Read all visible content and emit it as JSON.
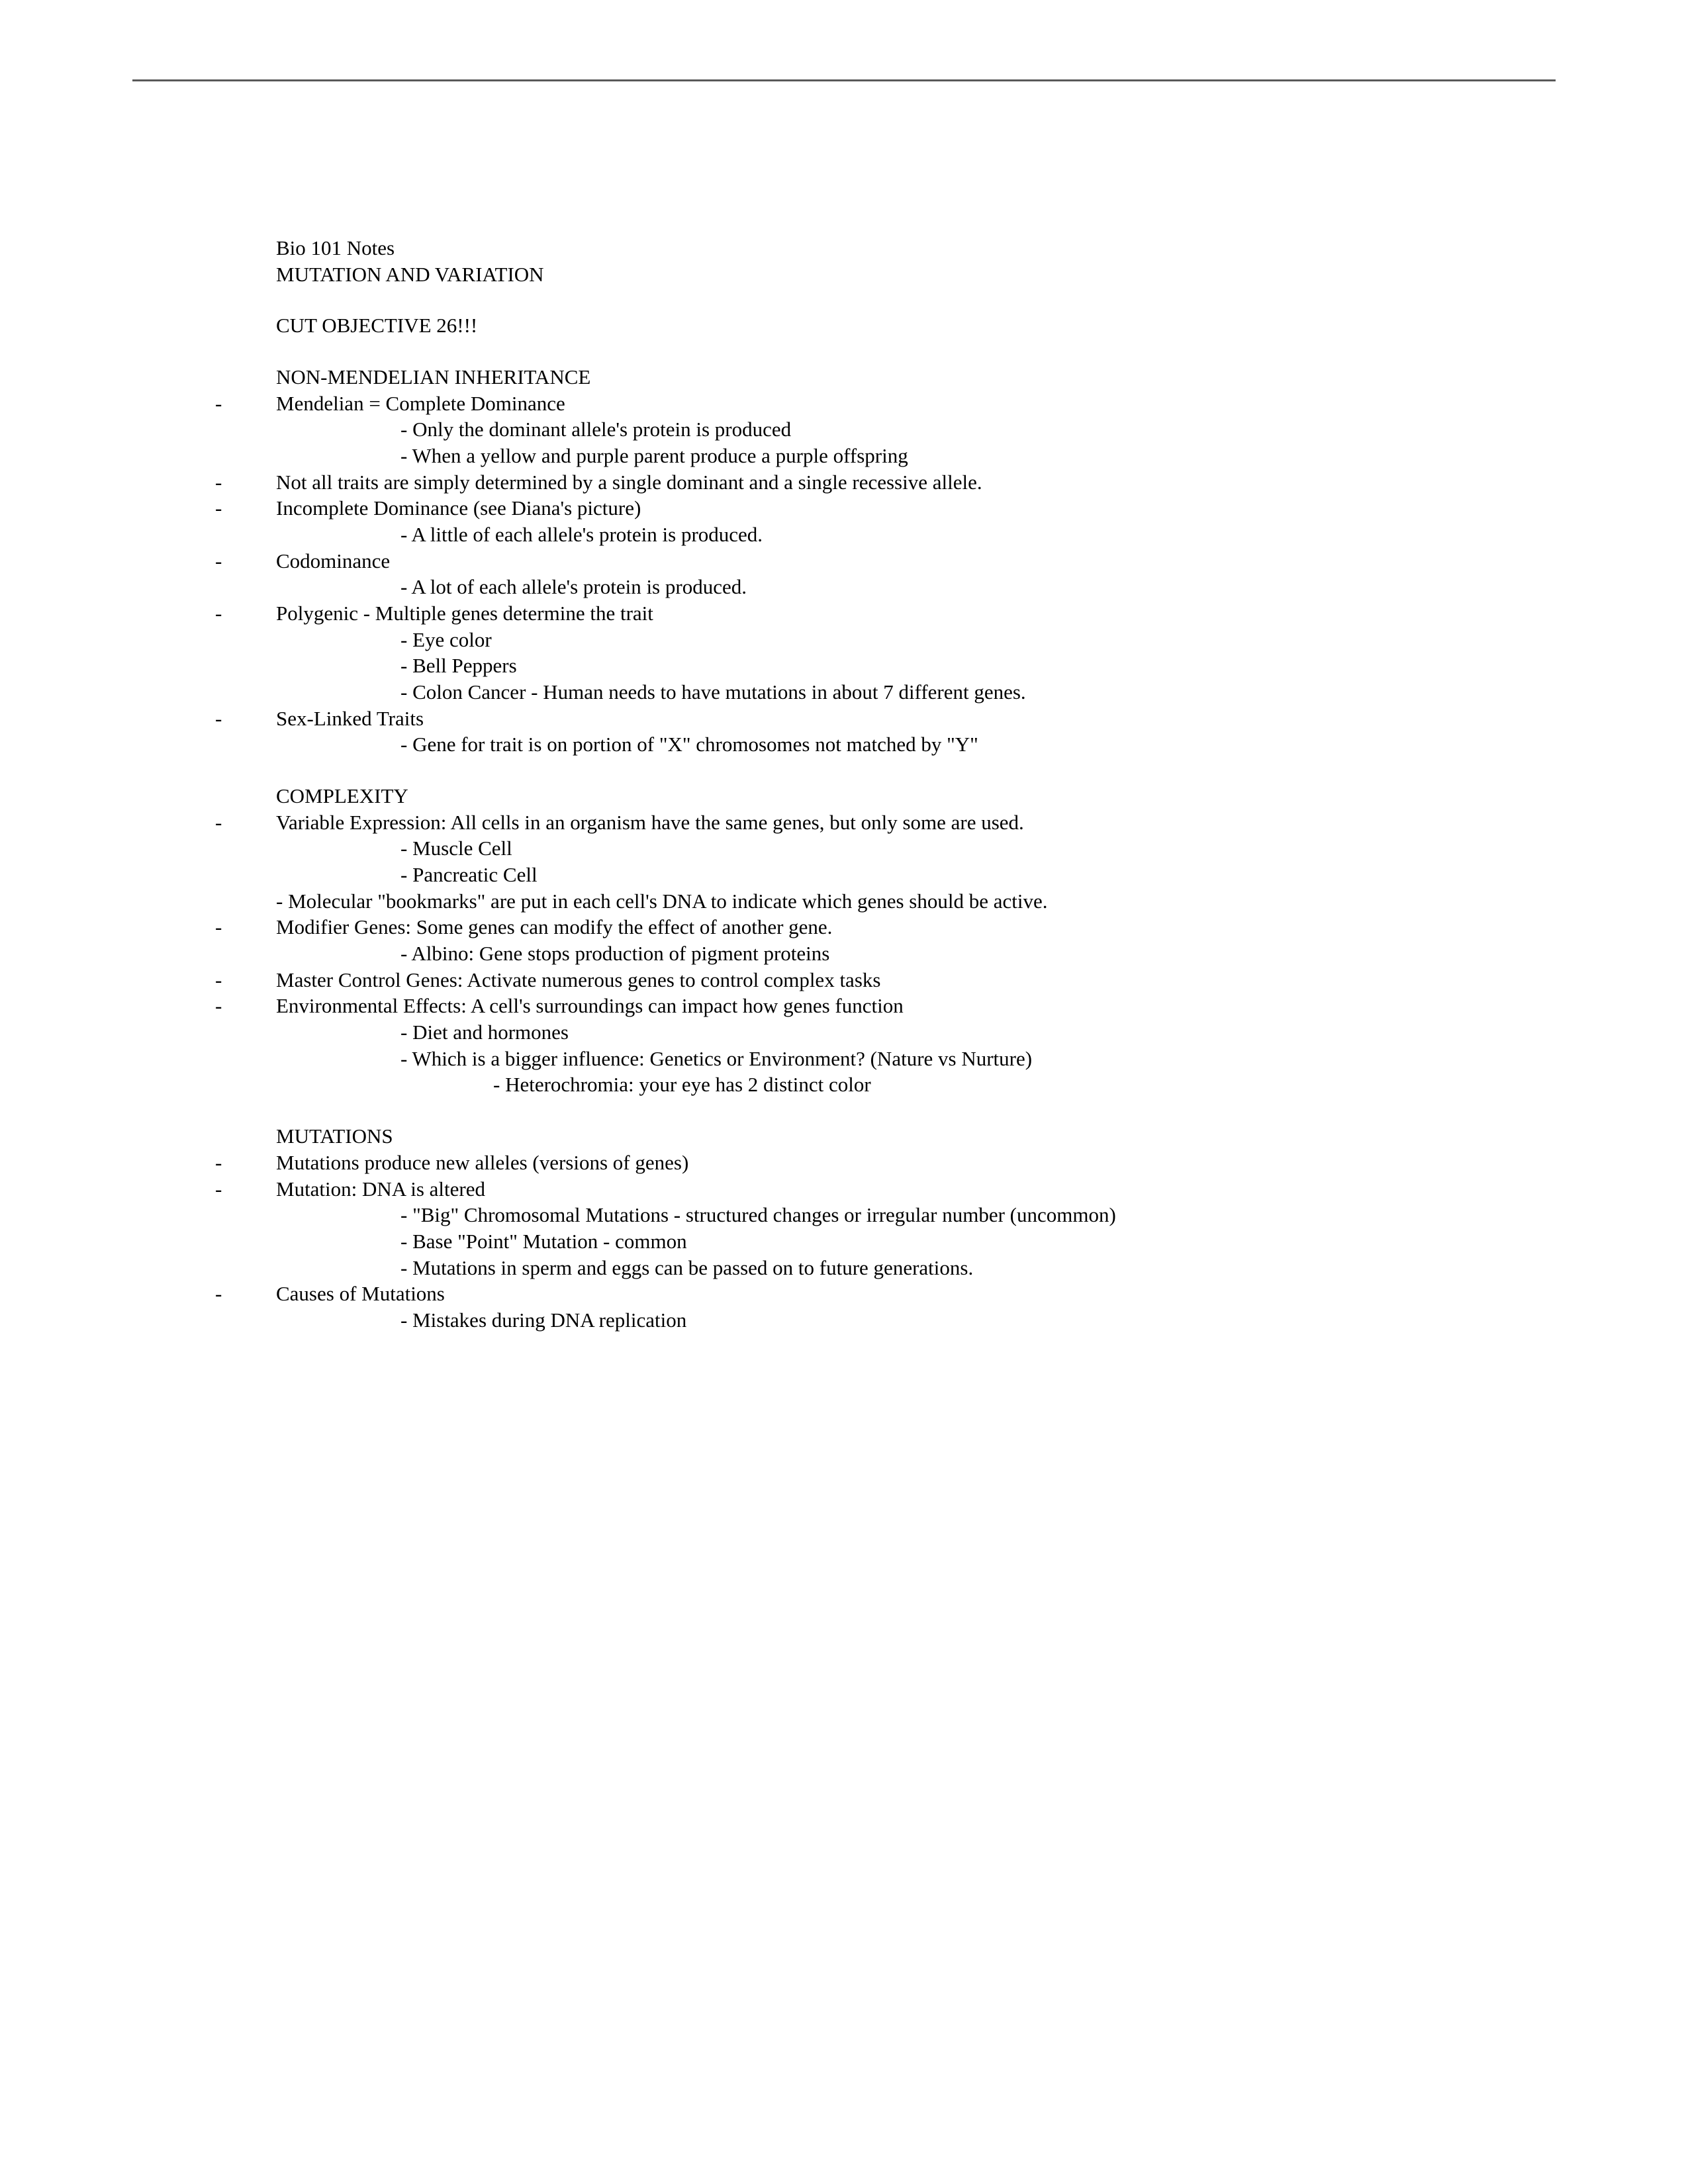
{
  "header": {
    "course": "Bio 101 Notes",
    "topic": "MUTATION AND VARIATION"
  },
  "cut_objective": "CUT OBJECTIVE 26!!!",
  "sections": {
    "non_mendelian": {
      "title": "NON-MENDELIAN INHERITANCE",
      "items": {
        "mendelian": {
          "text": "Mendelian = Complete Dominance",
          "sub": [
            "- Only the dominant allele's protein is produced",
            "- When a yellow and purple parent produce a purple offspring"
          ]
        },
        "not_all": "Not all traits are simply determined by a single dominant and a single recessive allele.",
        "incomplete": {
          "text": "Incomplete Dominance (see Diana's picture)",
          "sub": [
            "- A little of each allele's protein is produced."
          ]
        },
        "codominance": {
          "text": "Codominance",
          "sub": [
            "- A lot of each allele's protein is produced."
          ]
        },
        "polygenic": {
          "text": "Polygenic - Multiple genes determine the trait",
          "sub": [
            "- Eye color",
            "- Bell Peppers",
            "- Colon Cancer - Human needs to have mutations in about 7 different genes."
          ]
        },
        "sex_linked": {
          "text": "Sex-Linked Traits",
          "sub": [
            "- Gene for trait is on portion of \"X\" chromosomes not matched by \"Y\""
          ]
        }
      }
    },
    "complexity": {
      "title": "COMPLEXITY",
      "items": {
        "variable_expression": {
          "text": "Variable Expression: All cells in an organism have the same genes, but only some are used.",
          "sub": [
            "- Muscle Cell",
            "- Pancreatic Cell"
          ]
        },
        "bookmarks": "- Molecular \"bookmarks\" are put in each cell's DNA to indicate which genes should be active.",
        "modifier": {
          "text": "Modifier Genes: Some genes can modify the effect of another gene.",
          "sub": [
            "- Albino: Gene stops production of pigment proteins"
          ]
        },
        "master": "Master Control Genes: Activate numerous genes to control complex tasks",
        "environmental": {
          "text": "Environmental Effects: A cell's surroundings can impact how genes function",
          "sub": [
            "- Diet and hormones",
            "- Which is a bigger influence: Genetics or Environment? (Nature vs Nurture)"
          ],
          "subsub": [
            "- Heterochromia: your eye has 2 distinct color"
          ]
        }
      }
    },
    "mutations": {
      "title": "MUTATIONS",
      "items": {
        "produce": "Mutations produce new alleles (versions of genes)",
        "definition": {
          "text": "Mutation: DNA is altered",
          "sub": [
            "- \"Big\" Chromosomal Mutations - structured changes or irregular number (uncommon)",
            "- Base \"Point\" Mutation - common",
            "- Mutations in sperm and eggs can be passed on to future generations."
          ]
        },
        "causes": {
          "text": "Causes of Mutations",
          "sub": [
            "- Mistakes during DNA replication"
          ]
        }
      }
    }
  },
  "dash": "-"
}
